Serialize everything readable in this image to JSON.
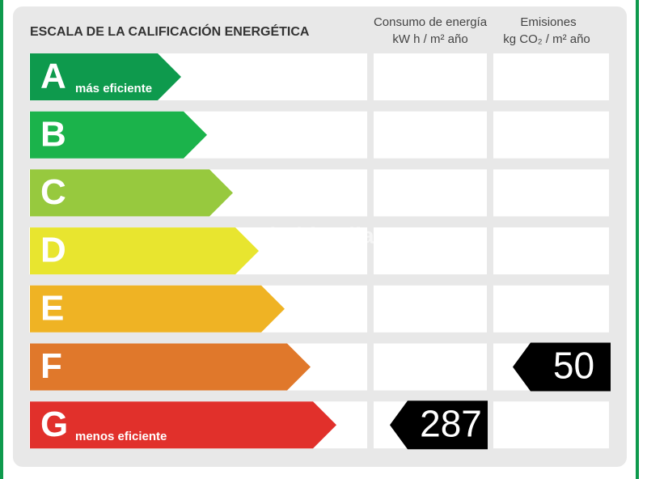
{
  "header": {
    "title": "ESCALA DE LA CALIFICACIÓN ENERGÉTICA",
    "consumption": [
      "Consumo de energía",
      "kW h  / m² año"
    ],
    "emissions": [
      "Emisiones",
      "kg CO₂  / m² año"
    ]
  },
  "watermark": "habitaclia",
  "rows": [
    {
      "letter": "A",
      "label": "más eficiente",
      "color": "#0e9a4d",
      "consumption": null,
      "emissions": null
    },
    {
      "letter": "B",
      "label": null,
      "color": "#1bb34b",
      "consumption": null,
      "emissions": null
    },
    {
      "letter": "C",
      "label": null,
      "color": "#97c93e",
      "consumption": null,
      "emissions": null
    },
    {
      "letter": "D",
      "label": null,
      "color": "#e8e52f",
      "consumption": null,
      "emissions": null
    },
    {
      "letter": "E",
      "label": null,
      "color": "#efb324",
      "consumption": null,
      "emissions": null
    },
    {
      "letter": "F",
      "label": null,
      "color": "#e0782b",
      "consumption": null,
      "emissions": 50
    },
    {
      "letter": "G",
      "label": "menos eficiente",
      "color": "#e1302b",
      "consumption": 287,
      "emissions": null
    }
  ]
}
